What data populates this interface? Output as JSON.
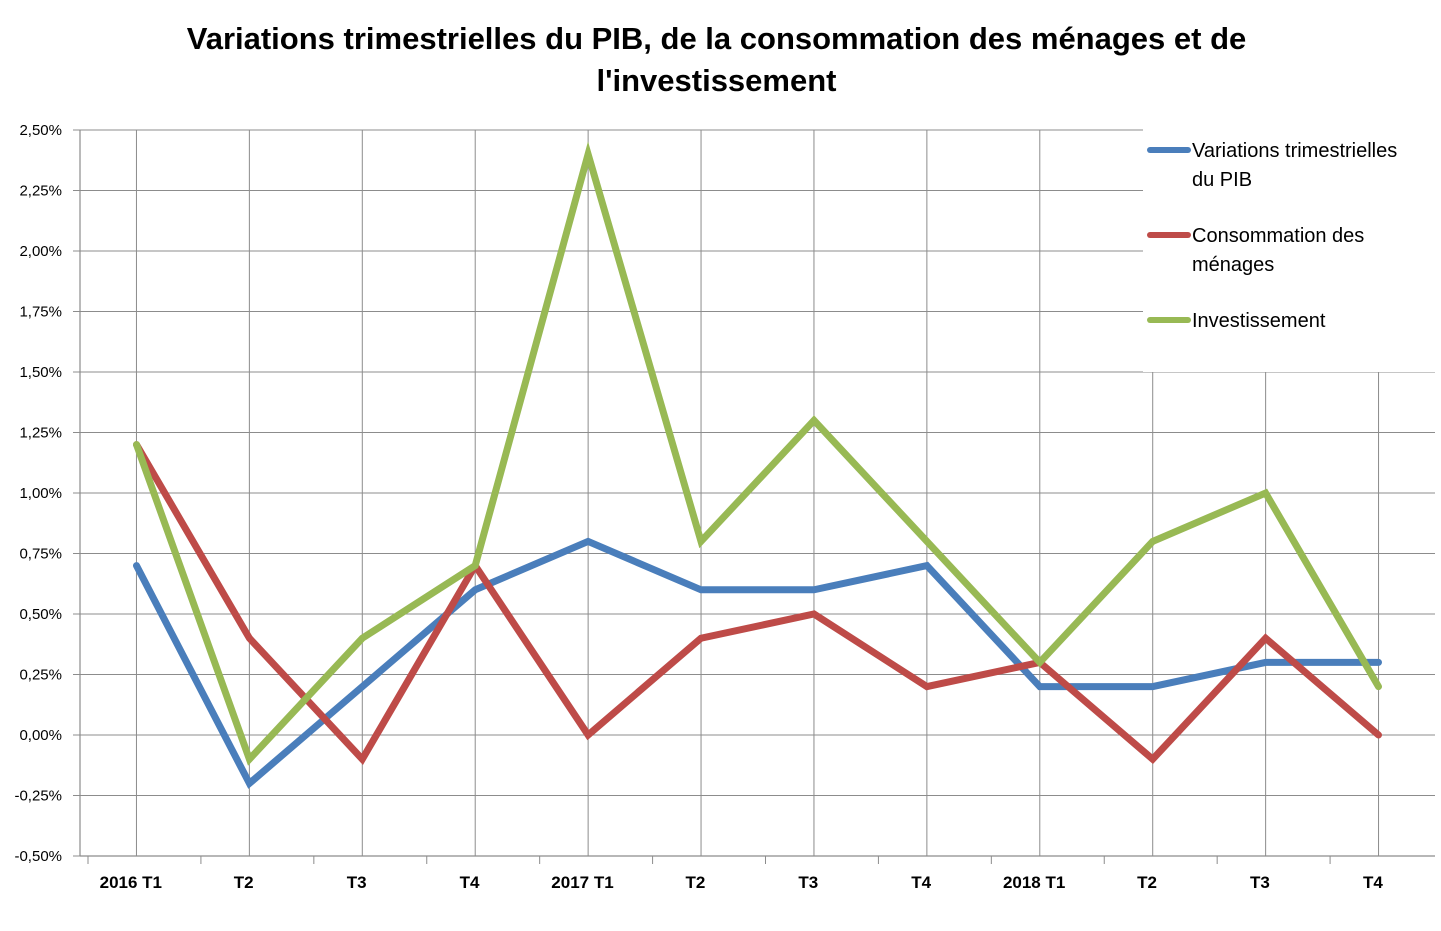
{
  "chart_data": {
    "type": "line",
    "title": "Variations trimestrielles du PIB, de la consommation des ménages et de l'investissement",
    "xlabel": "",
    "ylabel": "",
    "categories": [
      "2016 T1",
      "T2",
      "T3",
      "T4",
      "2017 T1",
      "T2",
      "T3",
      "T4",
      "2018 T1",
      "T2",
      "T3",
      "T4"
    ],
    "y_ticks": [
      "-0,50%",
      "-0,25%",
      "0,00%",
      "0,25%",
      "0,50%",
      "0,75%",
      "1,00%",
      "1,25%",
      "1,50%",
      "1,75%",
      "2,00%",
      "2,25%",
      "2,50%"
    ],
    "ylim": [
      -0.5,
      2.5
    ],
    "grid": true,
    "legend_position": "top-right",
    "series": [
      {
        "name": "Variations trimestrielles du PIB",
        "legend_lines": [
          "Variations trimestrielles",
          "du PIB"
        ],
        "color": "#4a7ebb",
        "values": [
          0.7,
          -0.2,
          0.2,
          0.6,
          0.8,
          0.6,
          0.6,
          0.7,
          0.2,
          0.2,
          0.3,
          0.3
        ]
      },
      {
        "name": "Consommation des ménages",
        "legend_lines": [
          "Consommation des",
          "ménages"
        ],
        "color": "#be4b48",
        "values": [
          1.2,
          0.4,
          -0.1,
          0.7,
          0.0,
          0.4,
          0.5,
          0.2,
          0.3,
          -0.1,
          0.4,
          0.0
        ]
      },
      {
        "name": "Investissement",
        "legend_lines": [
          "Investissement"
        ],
        "color": "#98b954",
        "values": [
          1.2,
          -0.1,
          0.4,
          0.7,
          2.4,
          0.8,
          1.3,
          0.8,
          0.3,
          0.8,
          1.0,
          0.2
        ]
      }
    ]
  }
}
